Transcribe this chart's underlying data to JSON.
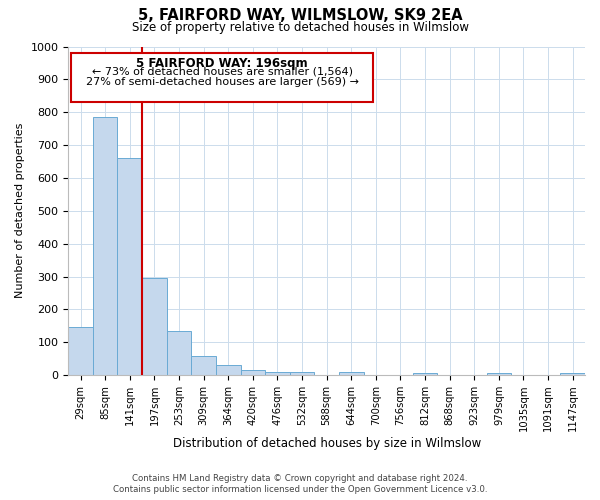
{
  "title": "5, FAIRFORD WAY, WILMSLOW, SK9 2EA",
  "subtitle": "Size of property relative to detached houses in Wilmslow",
  "xlabel": "Distribution of detached houses by size in Wilmslow",
  "ylabel": "Number of detached properties",
  "bar_labels": [
    "29sqm",
    "85sqm",
    "141sqm",
    "197sqm",
    "253sqm",
    "309sqm",
    "364sqm",
    "420sqm",
    "476sqm",
    "532sqm",
    "588sqm",
    "644sqm",
    "700sqm",
    "756sqm",
    "812sqm",
    "868sqm",
    "923sqm",
    "979sqm",
    "1035sqm",
    "1091sqm",
    "1147sqm"
  ],
  "bar_heights": [
    145,
    785,
    660,
    295,
    135,
    57,
    32,
    17,
    10,
    10,
    0,
    10,
    0,
    0,
    7,
    0,
    0,
    7,
    0,
    0,
    7
  ],
  "bar_color": "#c5d8ed",
  "bar_edge_color": "#6aaad4",
  "vline_color": "#cc0000",
  "annotation_title": "5 FAIRFORD WAY: 196sqm",
  "annotation_line1": "← 73% of detached houses are smaller (1,564)",
  "annotation_line2": "27% of semi-detached houses are larger (569) →",
  "annotation_box_color": "#cc0000",
  "ylim": [
    0,
    1000
  ],
  "yticks": [
    0,
    100,
    200,
    300,
    400,
    500,
    600,
    700,
    800,
    900,
    1000
  ],
  "footer_line1": "Contains HM Land Registry data © Crown copyright and database right 2024.",
  "footer_line2": "Contains public sector information licensed under the Open Government Licence v3.0.",
  "bg_color": "#ffffff",
  "grid_color": "#ccdcec"
}
